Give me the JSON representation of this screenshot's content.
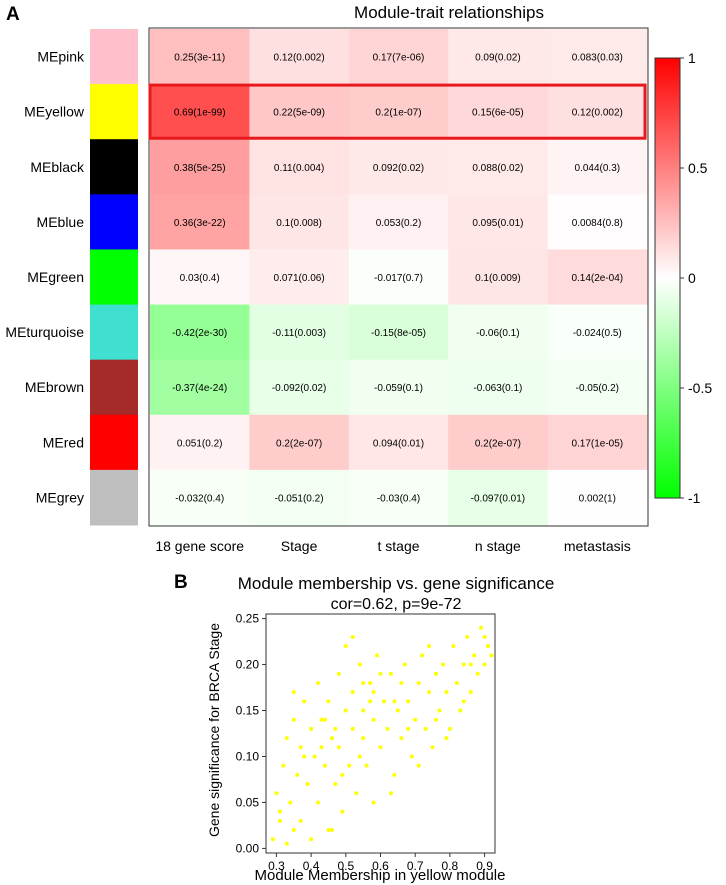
{
  "chart_data": [
    {
      "panel_label": "A",
      "type": "heatmap",
      "title": "Module-trait relationships",
      "columns": [
        "18 gene score",
        "Stage",
        "t stage",
        "n stage",
        "metastasis"
      ],
      "rows": [
        {
          "module": "MEpink",
          "color": "#FFC0CB",
          "values": [
            0.25,
            0.12,
            0.17,
            0.09,
            0.083
          ],
          "labels": [
            "0.25(3e-11)",
            "0.12(0.002)",
            "0.17(7e-06)",
            "0.09(0.02)",
            "0.083(0.03)"
          ]
        },
        {
          "module": "MEyellow",
          "color": "#FFFF00",
          "values": [
            0.69,
            0.22,
            0.2,
            0.15,
            0.12
          ],
          "labels": [
            "0.69(1e-99)",
            "0.22(5e-09)",
            "0.2(1e-07)",
            "0.15(6e-05)",
            "0.12(0.002)"
          ]
        },
        {
          "module": "MEblack",
          "color": "#000000",
          "values": [
            0.38,
            0.11,
            0.092,
            0.088,
            0.044
          ],
          "labels": [
            "0.38(5e-25)",
            "0.11(0.004)",
            "0.092(0.02)",
            "0.088(0.02)",
            "0.044(0.3)"
          ]
        },
        {
          "module": "MEblue",
          "color": "#0000FF",
          "values": [
            0.36,
            0.1,
            0.053,
            0.095,
            0.0084
          ],
          "labels": [
            "0.36(3e-22)",
            "0.1(0.008)",
            "0.053(0.2)",
            "0.095(0.01)",
            "0.0084(0.8)"
          ]
        },
        {
          "module": "MEgreen",
          "color": "#00FF00",
          "values": [
            0.03,
            0.071,
            -0.017,
            0.1,
            0.14
          ],
          "labels": [
            "0.03(0.4)",
            "0.071(0.06)",
            "-0.017(0.7)",
            "0.1(0.009)",
            "0.14(2e-04)"
          ]
        },
        {
          "module": "MEturquoise",
          "color": "#40E0D0",
          "values": [
            -0.42,
            -0.11,
            -0.15,
            -0.06,
            -0.024
          ],
          "labels": [
            "-0.42(2e-30)",
            "-0.11(0.003)",
            "-0.15(8e-05)",
            "-0.06(0.1)",
            "-0.024(0.5)"
          ]
        },
        {
          "module": "MEbrown",
          "color": "#A52A2A",
          "values": [
            -0.37,
            -0.092,
            -0.059,
            -0.063,
            -0.05
          ],
          "labels": [
            "-0.37(4e-24)",
            "-0.092(0.02)",
            "-0.059(0.1)",
            "-0.063(0.1)",
            "-0.05(0.2)"
          ]
        },
        {
          "module": "MEred",
          "color": "#FF0000",
          "values": [
            0.051,
            0.2,
            0.094,
            0.2,
            0.17
          ],
          "labels": [
            "0.051(0.2)",
            "0.2(2e-07)",
            "0.094(0.01)",
            "0.2(2e-07)",
            "0.17(1e-05)"
          ]
        },
        {
          "module": "MEgrey",
          "color": "#BEBEBE",
          "values": [
            -0.032,
            -0.051,
            -0.03,
            -0.097,
            0.002
          ],
          "labels": [
            "-0.032(0.4)",
            "-0.051(0.2)",
            "-0.03(0.4)",
            "-0.097(0.01)",
            "0.002(1)"
          ]
        }
      ],
      "highlighted_row": "MEyellow",
      "highlight_color": "#E8191C",
      "color_scale": {
        "low": "#00FF00",
        "mid": "#FFFFFF",
        "high": "#FF0000",
        "range": [
          -1,
          1
        ],
        "ticks": [
          1,
          0.5,
          0,
          -0.5,
          -1
        ],
        "tick_labels": [
          "1",
          "0.5",
          "0",
          "-0.5",
          "-1"
        ]
      }
    },
    {
      "panel_label": "B",
      "type": "scatter",
      "title": "Module membership vs. gene significance",
      "subtitle": "cor=0.62, p=9e-72",
      "xlabel": "Module Membership in yellow module",
      "ylabel": "Gene significance for BRCA Stage",
      "xlim": [
        0.27,
        0.93
      ],
      "ylim": [
        -0.005,
        0.255
      ],
      "xticks": [
        0.3,
        0.4,
        0.5,
        0.6,
        0.7,
        0.8,
        0.9
      ],
      "xtick_labels": [
        "0.3",
        "0.4",
        "0.5",
        "0.6",
        "0.7",
        "0.8",
        "0.9"
      ],
      "yticks": [
        0,
        0.05,
        0.1,
        0.15,
        0.2,
        0.25
      ],
      "ytick_labels": [
        "0.00",
        "0.05",
        "0.10",
        "0.15",
        "0.20",
        "0.25"
      ],
      "point_color": "#FFFF00",
      "points": [
        [
          0.29,
          0.01
        ],
        [
          0.3,
          0.06
        ],
        [
          0.31,
          0.03
        ],
        [
          0.32,
          0.09
        ],
        [
          0.33,
          0.005
        ],
        [
          0.33,
          0.12
        ],
        [
          0.34,
          0.05
        ],
        [
          0.35,
          0.02
        ],
        [
          0.35,
          0.14
        ],
        [
          0.36,
          0.08
        ],
        [
          0.37,
          0.11
        ],
        [
          0.37,
          0.03
        ],
        [
          0.38,
          0.16
        ],
        [
          0.39,
          0.07
        ],
        [
          0.4,
          0.01
        ],
        [
          0.4,
          0.13
        ],
        [
          0.41,
          0.1
        ],
        [
          0.42,
          0.05
        ],
        [
          0.42,
          0.18
        ],
        [
          0.43,
          0.14
        ],
        [
          0.44,
          0.09
        ],
        [
          0.45,
          0.02
        ],
        [
          0.45,
          0.16
        ],
        [
          0.46,
          0.12
        ],
        [
          0.47,
          0.07
        ],
        [
          0.48,
          0.19
        ],
        [
          0.48,
          0.11
        ],
        [
          0.49,
          0.04
        ],
        [
          0.5,
          0.15
        ],
        [
          0.5,
          0.22
        ],
        [
          0.51,
          0.09
        ],
        [
          0.52,
          0.13
        ],
        [
          0.52,
          0.17
        ],
        [
          0.53,
          0.06
        ],
        [
          0.54,
          0.2
        ],
        [
          0.55,
          0.12
        ],
        [
          0.55,
          0.15
        ],
        [
          0.56,
          0.09
        ],
        [
          0.57,
          0.18
        ],
        [
          0.58,
          0.14
        ],
        [
          0.58,
          0.05
        ],
        [
          0.59,
          0.21
        ],
        [
          0.6,
          0.11
        ],
        [
          0.61,
          0.16
        ],
        [
          0.62,
          0.13
        ],
        [
          0.63,
          0.19
        ],
        [
          0.64,
          0.08
        ],
        [
          0.65,
          0.15
        ],
        [
          0.66,
          0.12
        ],
        [
          0.67,
          0.2
        ],
        [
          0.68,
          0.16
        ],
        [
          0.69,
          0.1
        ],
        [
          0.7,
          0.14
        ],
        [
          0.71,
          0.18
        ],
        [
          0.72,
          0.21
        ],
        [
          0.73,
          0.13
        ],
        [
          0.74,
          0.17
        ],
        [
          0.75,
          0.11
        ],
        [
          0.76,
          0.19
        ],
        [
          0.77,
          0.15
        ],
        [
          0.78,
          0.2
        ],
        [
          0.79,
          0.17
        ],
        [
          0.8,
          0.13
        ],
        [
          0.81,
          0.22
        ],
        [
          0.82,
          0.18
        ],
        [
          0.83,
          0.15
        ],
        [
          0.84,
          0.2
        ],
        [
          0.85,
          0.23
        ],
        [
          0.86,
          0.17
        ],
        [
          0.87,
          0.21
        ],
        [
          0.88,
          0.19
        ],
        [
          0.89,
          0.24
        ],
        [
          0.9,
          0.2
        ],
        [
          0.91,
          0.22
        ],
        [
          0.92,
          0.21
        ],
        [
          0.35,
          0.17
        ],
        [
          0.46,
          0.02
        ],
        [
          0.63,
          0.06
        ],
        [
          0.71,
          0.09
        ],
        [
          0.52,
          0.23
        ],
        [
          0.38,
          0.1
        ],
        [
          0.57,
          0.16
        ],
        [
          0.66,
          0.18
        ],
        [
          0.44,
          0.14
        ],
        [
          0.79,
          0.12
        ],
        [
          0.84,
          0.16
        ],
        [
          0.6,
          0.19
        ],
        [
          0.54,
          0.1
        ],
        [
          0.47,
          0.13
        ],
        [
          0.74,
          0.22
        ],
        [
          0.31,
          0.04
        ],
        [
          0.43,
          0.11
        ],
        [
          0.68,
          0.13
        ],
        [
          0.86,
          0.2
        ],
        [
          0.58,
          0.17
        ],
        [
          0.49,
          0.08
        ],
        [
          0.76,
          0.14
        ],
        [
          0.64,
          0.16
        ],
        [
          0.55,
          0.18
        ],
        [
          0.9,
          0.23
        ]
      ]
    }
  ]
}
